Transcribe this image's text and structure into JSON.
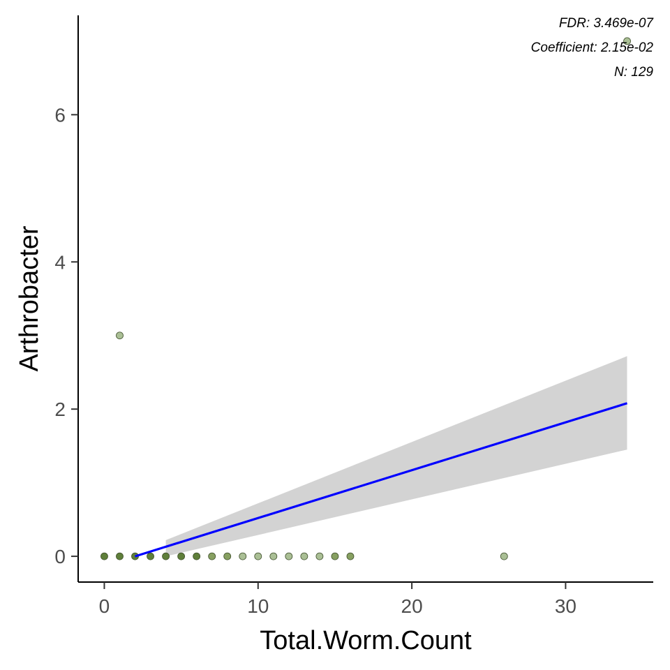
{
  "chart_data": {
    "type": "scatter",
    "xlabel": "Total.Worm.Count",
    "ylabel": "Arthrobacter",
    "xlim": [
      -1.7,
      35.7
    ],
    "ylim": [
      -0.35,
      7.35
    ],
    "x_ticks": [
      0,
      10,
      20,
      30
    ],
    "y_ticks": [
      0,
      2,
      4,
      6
    ],
    "x_tick_labels": [
      "0",
      "10",
      "20",
      "30"
    ],
    "y_tick_labels": [
      "0",
      "2",
      "4",
      "6"
    ],
    "annotations": [
      "FDR: 3.469e-07",
      "Coefficient: 2.15e-02",
      "N: 129"
    ],
    "points": [
      {
        "x": 0,
        "y": 0,
        "shade": "dark"
      },
      {
        "x": 1,
        "y": 0,
        "shade": "dark"
      },
      {
        "x": 2,
        "y": 0,
        "shade": "dark"
      },
      {
        "x": 3,
        "y": 0,
        "shade": "dark"
      },
      {
        "x": 4,
        "y": 0,
        "shade": "dark"
      },
      {
        "x": 5,
        "y": 0,
        "shade": "dark"
      },
      {
        "x": 6,
        "y": 0,
        "shade": "dark"
      },
      {
        "x": 7,
        "y": 0,
        "shade": "mid"
      },
      {
        "x": 8,
        "y": 0,
        "shade": "mid"
      },
      {
        "x": 9,
        "y": 0,
        "shade": "light"
      },
      {
        "x": 10,
        "y": 0,
        "shade": "light"
      },
      {
        "x": 11,
        "y": 0,
        "shade": "light"
      },
      {
        "x": 12,
        "y": 0,
        "shade": "light"
      },
      {
        "x": 13,
        "y": 0,
        "shade": "light"
      },
      {
        "x": 14,
        "y": 0,
        "shade": "light"
      },
      {
        "x": 15,
        "y": 0,
        "shade": "mid"
      },
      {
        "x": 16,
        "y": 0,
        "shade": "mid"
      },
      {
        "x": 26,
        "y": 0,
        "shade": "light"
      },
      {
        "x": 1,
        "y": 3,
        "shade": "light"
      },
      {
        "x": 34,
        "y": 7,
        "shade": "light"
      }
    ],
    "regression": {
      "x": [
        2,
        34
      ],
      "y": [
        0.0,
        2.08
      ],
      "color": "#0000ff"
    },
    "confidence_band": {
      "x": [
        4,
        34
      ],
      "upper": [
        0.22,
        2.72
      ],
      "lower": [
        0.0,
        1.45
      ],
      "color": "#d3d3d3"
    },
    "point_colors": {
      "dark": "#5f7f3a",
      "mid": "#87a061",
      "light": "#aabf95",
      "outline": "#3d4d2a"
    }
  }
}
